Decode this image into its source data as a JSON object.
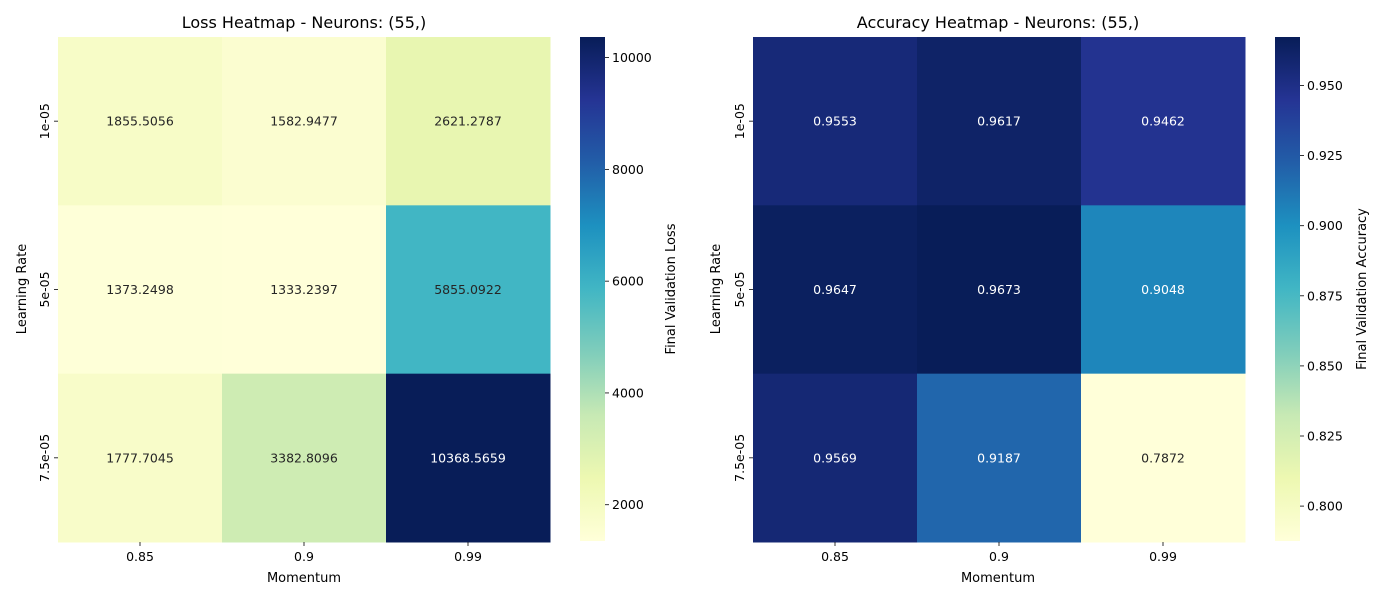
{
  "chart_data": [
    {
      "type": "heatmap",
      "title": "Loss Heatmap - Neurons: (55,)",
      "xlabel": "Momentum",
      "ylabel": "Learning Rate",
      "x_categories": [
        "0.85",
        "0.9",
        "0.99"
      ],
      "y_categories": [
        "1e-05",
        "5e-05",
        "7.5e-05"
      ],
      "values": [
        [
          1855.5056,
          1582.9477,
          2621.2787
        ],
        [
          1373.2498,
          1333.2397,
          5855.0922
        ],
        [
          1777.7045,
          3382.8096,
          10368.5659
        ]
      ],
      "value_format_decimals": 4,
      "colormap": "YlGnBu",
      "colorbar": {
        "label": "Final Validation Loss",
        "range": [
          1333.2397,
          10368.5659
        ],
        "ticks": [
          2000,
          4000,
          6000,
          8000,
          10000
        ]
      }
    },
    {
      "type": "heatmap",
      "title": "Accuracy Heatmap - Neurons: (55,)",
      "xlabel": "Momentum",
      "ylabel": "Learning Rate",
      "x_categories": [
        "0.85",
        "0.9",
        "0.99"
      ],
      "y_categories": [
        "1e-05",
        "5e-05",
        "7.5e-05"
      ],
      "values": [
        [
          0.9553,
          0.9617,
          0.9462
        ],
        [
          0.9647,
          0.9673,
          0.9048
        ],
        [
          0.9569,
          0.9187,
          0.7872
        ]
      ],
      "value_format_decimals": 4,
      "colormap": "YlGnBu",
      "colorbar": {
        "label": "Final Validation Accuracy",
        "range": [
          0.7872,
          0.9673
        ],
        "ticks": [
          0.8,
          0.825,
          0.85,
          0.875,
          0.9,
          0.925,
          0.95
        ]
      }
    }
  ]
}
